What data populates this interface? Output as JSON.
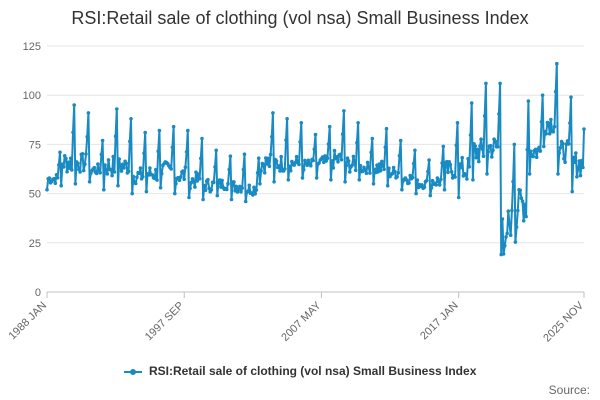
{
  "chart_data": {
    "type": "line",
    "title": "RSI:Retail sale of clothing (vol nsa) Small Business Index",
    "xlabel": "",
    "ylabel": "",
    "ylim": [
      0,
      125
    ],
    "y_ticks": [
      0,
      25,
      50,
      75,
      100,
      125
    ],
    "x_tick_labels": [
      "1988 JAN",
      "1997 SEP",
      "2007 MAY",
      "2017 JAN",
      "2025 NOV"
    ],
    "x_ticks_year": [
      1988.0,
      1997.67,
      2007.33,
      2017.0,
      2025.83
    ],
    "grid": true,
    "legend": "bottom",
    "series": [
      {
        "name": "RSI:Retail sale of clothing (vol nsa) Small Business Index",
        "color": "#1a8bc2",
        "x_start_year": 1988.0,
        "x_end_year": 2025.83,
        "annual_peaks": [
          {
            "year": 1988.9,
            "value": 71
          },
          {
            "year": 1989.9,
            "value": 95
          },
          {
            "year": 1990.9,
            "value": 91
          },
          {
            "year": 1991.9,
            "value": 77
          },
          {
            "year": 1992.9,
            "value": 93
          },
          {
            "year": 1993.9,
            "value": 88
          },
          {
            "year": 1994.9,
            "value": 81
          },
          {
            "year": 1995.9,
            "value": 82
          },
          {
            "year": 1996.9,
            "value": 84
          },
          {
            "year": 1997.9,
            "value": 82
          },
          {
            "year": 1998.9,
            "value": 78
          },
          {
            "year": 1999.9,
            "value": 72
          },
          {
            "year": 2000.9,
            "value": 69
          },
          {
            "year": 2001.9,
            "value": 70
          },
          {
            "year": 2002.9,
            "value": 68
          },
          {
            "year": 2003.9,
            "value": 91
          },
          {
            "year": 2004.9,
            "value": 88
          },
          {
            "year": 2005.9,
            "value": 86
          },
          {
            "year": 2006.9,
            "value": 80
          },
          {
            "year": 2007.9,
            "value": 84
          },
          {
            "year": 2008.9,
            "value": 92
          },
          {
            "year": 2009.9,
            "value": 86
          },
          {
            "year": 2010.9,
            "value": 78
          },
          {
            "year": 2011.9,
            "value": 83
          },
          {
            "year": 2012.9,
            "value": 77
          },
          {
            "year": 2013.9,
            "value": 72
          },
          {
            "year": 2014.9,
            "value": 67
          },
          {
            "year": 2015.9,
            "value": 74
          },
          {
            "year": 2016.9,
            "value": 86
          },
          {
            "year": 2017.9,
            "value": 96
          },
          {
            "year": 2018.9,
            "value": 106
          },
          {
            "year": 2019.9,
            "value": 106
          },
          {
            "year": 2020.9,
            "value": 75
          },
          {
            "year": 2021.9,
            "value": 97
          },
          {
            "year": 2022.9,
            "value": 100
          },
          {
            "year": 2023.9,
            "value": 116
          },
          {
            "year": 2024.9,
            "value": 99
          },
          {
            "year": 2025.8,
            "value": 99
          }
        ],
        "annual_lows": [
          {
            "year": 1988.1,
            "value": 52
          },
          {
            "year": 1989.1,
            "value": 54
          },
          {
            "year": 1990.1,
            "value": 55
          },
          {
            "year": 1991.1,
            "value": 56
          },
          {
            "year": 1992.1,
            "value": 52
          },
          {
            "year": 1993.1,
            "value": 54
          },
          {
            "year": 1994.1,
            "value": 50
          },
          {
            "year": 1995.1,
            "value": 51
          },
          {
            "year": 1996.1,
            "value": 53
          },
          {
            "year": 1997.1,
            "value": 50
          },
          {
            "year": 1998.1,
            "value": 48
          },
          {
            "year": 1999.1,
            "value": 47
          },
          {
            "year": 2000.1,
            "value": 49
          },
          {
            "year": 2001.1,
            "value": 47
          },
          {
            "year": 2002.1,
            "value": 46
          },
          {
            "year": 2003.1,
            "value": 55
          },
          {
            "year": 2004.1,
            "value": 56
          },
          {
            "year": 2005.1,
            "value": 57
          },
          {
            "year": 2006.1,
            "value": 58
          },
          {
            "year": 2007.1,
            "value": 58
          },
          {
            "year": 2008.1,
            "value": 57
          },
          {
            "year": 2009.1,
            "value": 56
          },
          {
            "year": 2010.1,
            "value": 57
          },
          {
            "year": 2011.1,
            "value": 55
          },
          {
            "year": 2012.1,
            "value": 54
          },
          {
            "year": 2013.1,
            "value": 52
          },
          {
            "year": 2014.1,
            "value": 50
          },
          {
            "year": 2015.1,
            "value": 49
          },
          {
            "year": 2016.1,
            "value": 52
          },
          {
            "year": 2017.1,
            "value": 48
          },
          {
            "year": 2018.1,
            "value": 57
          },
          {
            "year": 2019.1,
            "value": 60
          },
          {
            "year": 2020.3,
            "value": 19
          },
          {
            "year": 2021.1,
            "value": 24
          },
          {
            "year": 2022.1,
            "value": 60
          },
          {
            "year": 2023.1,
            "value": 74
          },
          {
            "year": 2024.1,
            "value": 60
          },
          {
            "year": 2025.1,
            "value": 51
          }
        ]
      }
    ]
  },
  "footer": {
    "source_label": "Source:"
  }
}
